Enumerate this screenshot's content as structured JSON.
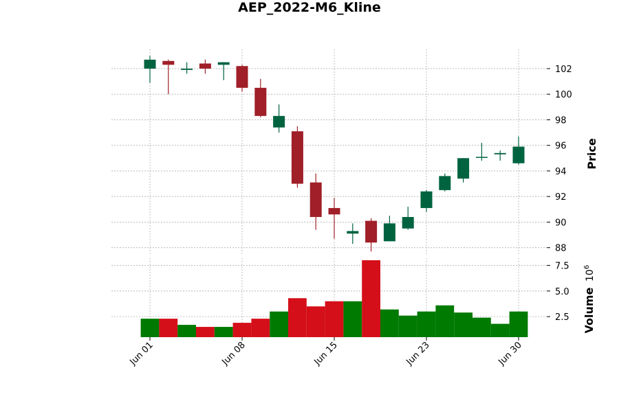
{
  "chart_data": {
    "type": "candlestick",
    "title": "AEP_2022-M6_Kline",
    "price_axis": {
      "label": "Price",
      "ylim": [
        87.5,
        103.5
      ],
      "ticks": [
        88,
        90,
        92,
        94,
        96,
        98,
        100,
        102
      ]
    },
    "volume_axis": {
      "label": "Volume",
      "exponent_label": "10",
      "exponent": "6",
      "ylim": [
        0.5,
        8.2
      ],
      "ticks": [
        2.5,
        5.0,
        7.5
      ],
      "tick_labels": [
        "2.5",
        "5.0",
        "7.5"
      ]
    },
    "x_tick_labels": [
      "Jun 01",
      "Jun 08",
      "Jun 15",
      "Jun 23",
      "Jun 30"
    ],
    "x_tick_index": [
      0,
      5,
      10,
      15,
      20
    ],
    "grid": true,
    "colors": {
      "up": "#006340",
      "down": "#a01f28",
      "vol_up": "#007a00",
      "vol_down": "#d40f1a",
      "grid": "#b0b0b0"
    },
    "candles": [
      {
        "date": "2022-06-01",
        "open": 102.0,
        "high": 103.0,
        "low": 100.9,
        "close": 102.7
      },
      {
        "date": "2022-06-02",
        "open": 102.6,
        "high": 102.7,
        "low": 100.0,
        "close": 102.3
      },
      {
        "date": "2022-06-03",
        "open": 101.9,
        "high": 102.5,
        "low": 101.6,
        "close": 102.0
      },
      {
        "date": "2022-06-06",
        "open": 102.4,
        "high": 102.7,
        "low": 101.6,
        "close": 102.0
      },
      {
        "date": "2022-06-07",
        "open": 102.3,
        "high": 102.5,
        "low": 101.1,
        "close": 102.5
      },
      {
        "date": "2022-06-08",
        "open": 102.2,
        "high": 102.3,
        "low": 100.2,
        "close": 100.5
      },
      {
        "date": "2022-06-09",
        "open": 100.5,
        "high": 101.2,
        "low": 98.2,
        "close": 98.3
      },
      {
        "date": "2022-06-10",
        "open": 97.4,
        "high": 99.2,
        "low": 97.0,
        "close": 98.3
      },
      {
        "date": "2022-06-13",
        "open": 97.1,
        "high": 97.5,
        "low": 92.7,
        "close": 93.0
      },
      {
        "date": "2022-06-14",
        "open": 93.1,
        "high": 93.8,
        "low": 89.4,
        "close": 90.4
      },
      {
        "date": "2022-06-15",
        "open": 91.1,
        "high": 91.9,
        "low": 88.7,
        "close": 90.6
      },
      {
        "date": "2022-06-16",
        "open": 89.1,
        "high": 89.9,
        "low": 88.3,
        "close": 89.3
      },
      {
        "date": "2022-06-17",
        "open": 90.1,
        "high": 90.3,
        "low": 87.7,
        "close": 88.4
      },
      {
        "date": "2022-06-21",
        "open": 88.5,
        "high": 90.5,
        "low": 88.5,
        "close": 89.9
      },
      {
        "date": "2022-06-22",
        "open": 89.5,
        "high": 91.2,
        "low": 89.4,
        "close": 90.4
      },
      {
        "date": "2022-06-23",
        "open": 91.1,
        "high": 92.5,
        "low": 90.8,
        "close": 92.4
      },
      {
        "date": "2022-06-24",
        "open": 92.5,
        "high": 93.8,
        "low": 92.4,
        "close": 93.6
      },
      {
        "date": "2022-06-27",
        "open": 93.4,
        "high": 95.0,
        "low": 93.1,
        "close": 95.0
      },
      {
        "date": "2022-06-28",
        "open": 95.1,
        "high": 96.2,
        "low": 94.8,
        "close": 95.1
      },
      {
        "date": "2022-06-29",
        "open": 95.3,
        "high": 95.6,
        "low": 94.8,
        "close": 95.4
      },
      {
        "date": "2022-06-30",
        "open": 94.6,
        "high": 96.7,
        "low": 94.5,
        "close": 95.9
      }
    ],
    "volume": [
      2.3,
      2.3,
      1.7,
      1.5,
      1.5,
      1.9,
      2.3,
      3.0,
      4.3,
      3.5,
      4.0,
      4.0,
      8.0,
      3.2,
      2.6,
      3.0,
      3.6,
      2.9,
      2.4,
      1.8,
      3.0
    ]
  }
}
